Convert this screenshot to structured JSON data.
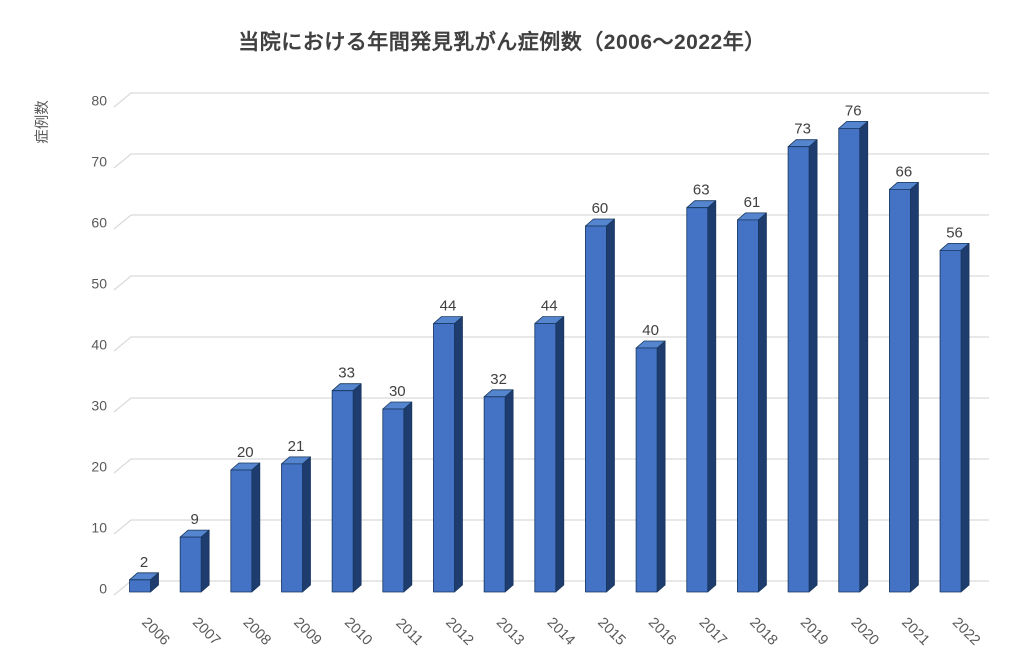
{
  "chart_data": {
    "type": "bar",
    "style": "3d-bar",
    "title": "当院における年間発見乳がん症例数（2006～2022年）",
    "ylabel": "症例数",
    "xlabel": "",
    "categories": [
      "2006",
      "2007",
      "2008",
      "2009",
      "2010",
      "2011",
      "2012",
      "2013",
      "2014",
      "2015",
      "2016",
      "2017",
      "2018",
      "2019",
      "2020",
      "2021",
      "2022"
    ],
    "values": [
      2,
      9,
      20,
      21,
      33,
      30,
      44,
      32,
      44,
      60,
      40,
      63,
      61,
      73,
      76,
      66,
      56
    ],
    "data_labels_shown": true,
    "ylim": [
      0,
      80
    ],
    "yticks": [
      0,
      10,
      20,
      30,
      40,
      50,
      60,
      70,
      80
    ],
    "grid": true,
    "legend": "none",
    "x_tick_rotation_deg": 45,
    "colors": {
      "bar_front": "#4472C4",
      "bar_top": "#5585CE",
      "bar_side": "#1F3C6E",
      "bar_outline": "#17375E",
      "gridline": "#D9D9D9",
      "title_text": "#404040",
      "axis_text": "#595959",
      "data_label_text": "#404040",
      "background": "#FFFFFF"
    }
  }
}
